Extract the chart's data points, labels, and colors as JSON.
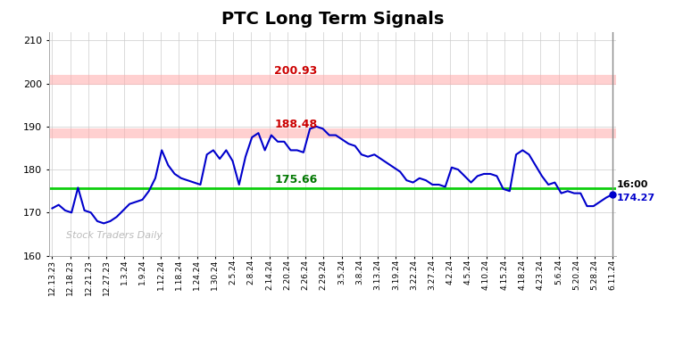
{
  "title": "PTC Long Term Signals",
  "title_fontsize": 14,
  "background_color": "#ffffff",
  "line_color": "#0000cc",
  "line_width": 1.5,
  "hline_green": 175.66,
  "hline_red1": 200.93,
  "hline_red2": 188.48,
  "hline_green_color": "#00cc00",
  "hline_red_color": "#ffaaaa",
  "annotation_200": "200.93",
  "annotation_188": "188.48",
  "annotation_175": "175.66",
  "annotation_end_time": "16:00",
  "annotation_end_price": "174.27",
  "watermark": "Stock Traders Daily",
  "ylim": [
    160,
    212
  ],
  "yticks": [
    160,
    170,
    180,
    190,
    200,
    210
  ],
  "xtick_labels": [
    "12.13.23",
    "12.18.23",
    "12.21.23",
    "12.27.23",
    "1.3.24",
    "1.9.24",
    "1.12.24",
    "1.18.24",
    "1.24.24",
    "1.30.24",
    "2.5.24",
    "2.8.24",
    "2.14.24",
    "2.20.24",
    "2.26.24",
    "2.29.24",
    "3.5.24",
    "3.8.24",
    "3.13.24",
    "3.19.24",
    "3.22.24",
    "3.27.24",
    "4.2.24",
    "4.5.24",
    "4.10.24",
    "4.15.24",
    "4.18.24",
    "4.23.24",
    "5.6.24",
    "5.20.24",
    "5.28.24",
    "6.11.24"
  ],
  "prices": [
    171.0,
    171.8,
    170.5,
    170.0,
    175.8,
    170.5,
    170.0,
    168.0,
    167.5,
    168.0,
    169.0,
    170.5,
    172.0,
    172.5,
    173.0,
    175.0,
    178.0,
    184.5,
    181.0,
    179.0,
    178.0,
    177.5,
    177.0,
    176.5,
    183.5,
    184.5,
    182.5,
    184.5,
    182.0,
    176.5,
    183.0,
    187.5,
    188.5,
    184.5,
    188.0,
    186.5,
    186.5,
    184.5,
    184.5,
    184.0,
    189.5,
    190.0,
    189.5,
    188.0,
    188.0,
    187.0,
    186.0,
    185.5,
    183.5,
    183.0,
    183.5,
    182.5,
    181.5,
    180.5,
    179.5,
    177.5,
    177.0,
    178.0,
    177.5,
    176.5,
    176.5,
    176.0,
    180.5,
    180.0,
    178.5,
    177.0,
    178.5,
    179.0,
    179.0,
    178.5,
    175.5,
    175.0,
    183.5,
    184.5,
    183.5,
    181.0,
    178.5,
    176.5,
    177.0,
    174.5,
    175.0,
    174.5,
    174.5,
    171.5,
    171.5,
    172.5,
    173.5,
    174.27
  ]
}
